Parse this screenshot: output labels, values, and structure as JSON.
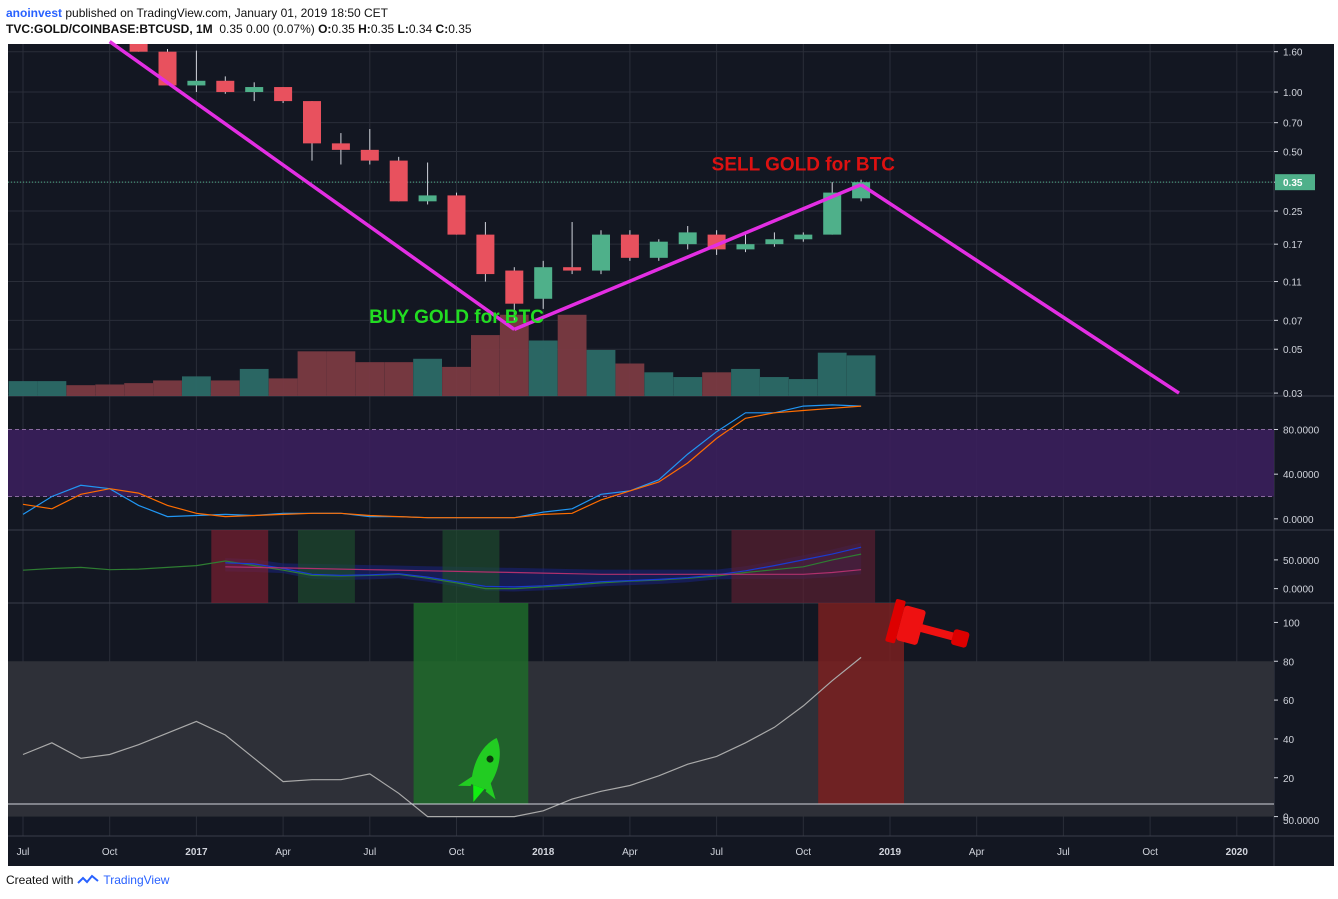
{
  "header": {
    "author": "anoinvest",
    "published": "published on TradingView.com, January 01, 2019 18:50 CET",
    "symbol": "TVC:GOLD/COINBASE:BTCUSD, 1M",
    "quote": "0.35 0.00 (0.07%)",
    "ohlc": {
      "o": "0.35",
      "h": "0.35",
      "l": "0.34",
      "c": "0.35"
    }
  },
  "footer": {
    "created_with": "Created with",
    "brand": "TradingView"
  },
  "colors": {
    "up": "#4fb08a",
    "down": "#e8515e",
    "trend": "#e32ee3",
    "bg": "#131722",
    "grid": "#2a2e39",
    "buy": "#22dd22",
    "sell": "#dd1111"
  },
  "chart_data": [
    {
      "type": "candlestick",
      "scale": "log",
      "ylim": [
        0.029,
        1.75
      ],
      "y_ticks": [
        1.6,
        1.0,
        0.7,
        0.5,
        0.35,
        0.25,
        0.17,
        0.11,
        0.07,
        0.05,
        0.03
      ],
      "y_tick_labels": [
        "1.60",
        "1.00",
        "0.70",
        "0.50",
        "0.35",
        "0.25",
        "0.17",
        "0.11",
        "0.07",
        "0.05",
        "0.03"
      ],
      "last_price_label": "0.35",
      "x_ticks": [
        {
          "date": "2016-07",
          "label": "Jul"
        },
        {
          "date": "2016-10",
          "label": "Oct"
        },
        {
          "date": "2017-01",
          "label": "2017"
        },
        {
          "date": "2017-04",
          "label": "Apr"
        },
        {
          "date": "2017-07",
          "label": "Jul"
        },
        {
          "date": "2017-10",
          "label": "Oct"
        },
        {
          "date": "2018-01",
          "label": "2018"
        },
        {
          "date": "2018-04",
          "label": "Apr"
        },
        {
          "date": "2018-07",
          "label": "Jul"
        },
        {
          "date": "2018-10",
          "label": "Oct"
        },
        {
          "date": "2019-01",
          "label": "2019"
        },
        {
          "date": "2019-04",
          "label": "Apr"
        },
        {
          "date": "2019-07",
          "label": "Jul"
        },
        {
          "date": "2019-10",
          "label": "Oct"
        },
        {
          "date": "2020-01",
          "label": "2020"
        }
      ],
      "candles": [
        {
          "date": "2016-11",
          "o": 1.75,
          "h": 1.75,
          "l": 1.6,
          "c": 1.6
        },
        {
          "date": "2016-12",
          "o": 1.6,
          "h": 1.65,
          "l": 1.08,
          "c": 1.08
        },
        {
          "date": "2017-01",
          "o": 1.08,
          "h": 1.62,
          "l": 1.0,
          "c": 1.14
        },
        {
          "date": "2017-02",
          "o": 1.14,
          "h": 1.2,
          "l": 0.98,
          "c": 1.0
        },
        {
          "date": "2017-03",
          "o": 1.0,
          "h": 1.12,
          "l": 0.9,
          "c": 1.06
        },
        {
          "date": "2017-04",
          "o": 1.06,
          "h": 1.06,
          "l": 0.88,
          "c": 0.9
        },
        {
          "date": "2017-05",
          "o": 0.9,
          "h": 0.9,
          "l": 0.45,
          "c": 0.55
        },
        {
          "date": "2017-06",
          "o": 0.55,
          "h": 0.62,
          "l": 0.43,
          "c": 0.51
        },
        {
          "date": "2017-07",
          "o": 0.51,
          "h": 0.65,
          "l": 0.43,
          "c": 0.45
        },
        {
          "date": "2017-08",
          "o": 0.45,
          "h": 0.47,
          "l": 0.28,
          "c": 0.28
        },
        {
          "date": "2017-09",
          "o": 0.28,
          "h": 0.44,
          "l": 0.27,
          "c": 0.3
        },
        {
          "date": "2017-10",
          "o": 0.3,
          "h": 0.31,
          "l": 0.19,
          "c": 0.19
        },
        {
          "date": "2017-11",
          "o": 0.19,
          "h": 0.22,
          "l": 0.11,
          "c": 0.12
        },
        {
          "date": "2017-12",
          "o": 0.125,
          "h": 0.13,
          "l": 0.07,
          "c": 0.085
        },
        {
          "date": "2018-01",
          "o": 0.09,
          "h": 0.14,
          "l": 0.08,
          "c": 0.13
        },
        {
          "date": "2018-02",
          "o": 0.13,
          "h": 0.22,
          "l": 0.12,
          "c": 0.125
        },
        {
          "date": "2018-03",
          "o": 0.125,
          "h": 0.2,
          "l": 0.12,
          "c": 0.19
        },
        {
          "date": "2018-04",
          "o": 0.19,
          "h": 0.2,
          "l": 0.14,
          "c": 0.145
        },
        {
          "date": "2018-05",
          "o": 0.145,
          "h": 0.18,
          "l": 0.14,
          "c": 0.175
        },
        {
          "date": "2018-06",
          "o": 0.17,
          "h": 0.21,
          "l": 0.16,
          "c": 0.195
        },
        {
          "date": "2018-07",
          "o": 0.19,
          "h": 0.2,
          "l": 0.15,
          "c": 0.16
        },
        {
          "date": "2018-08",
          "o": 0.16,
          "h": 0.195,
          "l": 0.155,
          "c": 0.17
        },
        {
          "date": "2018-09",
          "o": 0.17,
          "h": 0.195,
          "l": 0.165,
          "c": 0.18
        },
        {
          "date": "2018-10",
          "o": 0.18,
          "h": 0.195,
          "l": 0.175,
          "c": 0.19
        },
        {
          "date": "2018-11",
          "o": 0.19,
          "h": 0.35,
          "l": 0.19,
          "c": 0.31
        },
        {
          "date": "2018-12",
          "o": 0.29,
          "h": 0.36,
          "l": 0.28,
          "c": 0.35
        }
      ],
      "volume": [
        {
          "date": "2016-07",
          "v": 22,
          "dir": "up"
        },
        {
          "date": "2016-08",
          "v": 22,
          "dir": "up"
        },
        {
          "date": "2016-09",
          "v": 16,
          "dir": "down"
        },
        {
          "date": "2016-10",
          "v": 17,
          "dir": "down"
        },
        {
          "date": "2016-11",
          "v": 19,
          "dir": "down"
        },
        {
          "date": "2016-12",
          "v": 23,
          "dir": "down"
        },
        {
          "date": "2017-01",
          "v": 29,
          "dir": "up"
        },
        {
          "date": "2017-02",
          "v": 23,
          "dir": "down"
        },
        {
          "date": "2017-03",
          "v": 40,
          "dir": "up"
        },
        {
          "date": "2017-04",
          "v": 26,
          "dir": "down"
        },
        {
          "date": "2017-05",
          "v": 66,
          "dir": "down"
        },
        {
          "date": "2017-06",
          "v": 66,
          "dir": "down"
        },
        {
          "date": "2017-07",
          "v": 50,
          "dir": "down"
        },
        {
          "date": "2017-08",
          "v": 50,
          "dir": "down"
        },
        {
          "date": "2017-09",
          "v": 55,
          "dir": "up"
        },
        {
          "date": "2017-10",
          "v": 43,
          "dir": "down"
        },
        {
          "date": "2017-11",
          "v": 90,
          "dir": "down"
        },
        {
          "date": "2017-12",
          "v": 120,
          "dir": "down"
        },
        {
          "date": "2018-01",
          "v": 82,
          "dir": "up"
        },
        {
          "date": "2018-02",
          "v": 120,
          "dir": "down"
        },
        {
          "date": "2018-03",
          "v": 68,
          "dir": "up"
        },
        {
          "date": "2018-04",
          "v": 48,
          "dir": "down"
        },
        {
          "date": "2018-05",
          "v": 35,
          "dir": "up"
        },
        {
          "date": "2018-06",
          "v": 28,
          "dir": "up"
        },
        {
          "date": "2018-07",
          "v": 35,
          "dir": "down"
        },
        {
          "date": "2018-08",
          "v": 40,
          "dir": "up"
        },
        {
          "date": "2018-09",
          "v": 28,
          "dir": "up"
        },
        {
          "date": "2018-10",
          "v": 25,
          "dir": "up"
        },
        {
          "date": "2018-11",
          "v": 64,
          "dir": "up"
        },
        {
          "date": "2018-12",
          "v": 60,
          "dir": "up"
        }
      ],
      "trendlines": [
        {
          "points": [
            {
              "date": "2016-10",
              "y": 1.8
            },
            {
              "date": "2017-12",
              "y": 0.063
            }
          ]
        },
        {
          "points": [
            {
              "date": "2017-12",
              "y": 0.063
            },
            {
              "date": "2018-12",
              "y": 0.34
            }
          ]
        },
        {
          "points": [
            {
              "date": "2018-12",
              "y": 0.34
            },
            {
              "date": "2019-11",
              "y": 0.03
            }
          ]
        }
      ],
      "annotations": [
        {
          "text": "SELL GOLD for BTC",
          "date": "2018-10",
          "y": 0.4,
          "color": "#dd1111"
        },
        {
          "text": "BUY GOLD for BTC",
          "date": "2017-10",
          "y": 0.068,
          "color": "#22dd22"
        }
      ]
    },
    {
      "type": "line",
      "name": "Stochastic",
      "ylim": [
        -10,
        110
      ],
      "y_ticks": [
        0,
        40,
        80
      ],
      "y_tick_labels": [
        "0.0000",
        "40.0000",
        "80.0000"
      ],
      "band": [
        20,
        80
      ],
      "x": [
        "2016-07",
        "2016-08",
        "2016-09",
        "2016-10",
        "2016-11",
        "2016-12",
        "2017-01",
        "2017-02",
        "2017-03",
        "2017-04",
        "2017-05",
        "2017-06",
        "2017-07",
        "2017-08",
        "2017-09",
        "2017-10",
        "2017-11",
        "2017-12",
        "2018-01",
        "2018-02",
        "2018-03",
        "2018-04",
        "2018-05",
        "2018-06",
        "2018-07",
        "2018-08",
        "2018-09",
        "2018-10",
        "2018-11",
        "2018-12"
      ],
      "series": [
        {
          "color": "#2196f3",
          "values": [
            4,
            20,
            30,
            27,
            12,
            2,
            3,
            4,
            3,
            5,
            5,
            5,
            2,
            2,
            1,
            1,
            1,
            1,
            6,
            9,
            22,
            25,
            35,
            58,
            78,
            95,
            95,
            101,
            102,
            101
          ]
        },
        {
          "color": "#ff6d00",
          "values": [
            13,
            9,
            22,
            27,
            23,
            12,
            5,
            2,
            3,
            4,
            5,
            5,
            3,
            2,
            1,
            1,
            1,
            1,
            4,
            5,
            17,
            25,
            33,
            50,
            72,
            90,
            95,
            97,
            99,
            101
          ]
        }
      ]
    },
    {
      "type": "line",
      "name": "DMI",
      "ylim": [
        -25,
        102
      ],
      "y_ticks": [
        0,
        50
      ],
      "y_tick_labels": [
        "0.0000",
        "50.0000"
      ],
      "x": [
        "2016-07",
        "2016-08",
        "2016-09",
        "2016-10",
        "2016-11",
        "2016-12",
        "2017-01",
        "2017-02",
        "2017-03",
        "2017-04",
        "2017-05",
        "2017-06",
        "2017-07",
        "2017-08",
        "2017-09",
        "2017-10",
        "2017-11",
        "2017-12",
        "2018-01",
        "2018-02",
        "2018-03",
        "2018-04",
        "2018-05",
        "2018-06",
        "2018-07",
        "2018-08",
        "2018-09",
        "2018-10",
        "2018-11",
        "2018-12"
      ],
      "series": [
        {
          "color": "#2e7d32",
          "values": [
            32,
            35,
            37,
            33,
            34,
            37,
            40,
            48,
            40,
            32,
            23,
            22,
            23,
            25,
            18,
            10,
            0,
            0,
            3,
            6,
            10,
            13,
            15,
            18,
            22,
            28,
            33,
            38,
            50,
            60
          ]
        },
        {
          "color": "#1a3ad1",
          "values": [
            null,
            null,
            null,
            null,
            null,
            null,
            null,
            45,
            43,
            35,
            25,
            23,
            24,
            26,
            20,
            12,
            4,
            3,
            5,
            8,
            12,
            14,
            16,
            19,
            24,
            31,
            40,
            50,
            60,
            72
          ]
        },
        {
          "color": "#b0306c",
          "values": [
            null,
            null,
            null,
            null,
            null,
            null,
            null,
            38,
            37,
            36,
            35,
            34,
            33,
            32,
            31,
            30,
            29,
            28,
            27,
            26,
            25,
            25,
            25,
            25,
            25,
            25,
            25,
            25,
            28,
            33
          ]
        }
      ],
      "highlights": [
        {
          "from": "2017-02",
          "to": "2017-03",
          "color": "#7a2030"
        },
        {
          "from": "2017-05",
          "to": "2017-06",
          "color": "#1e4a2e"
        },
        {
          "from": "2017-10",
          "to": "2017-11",
          "color": "#1e4a2e"
        },
        {
          "from": "2018-08",
          "to": "2018-12",
          "color": "#5a2030"
        }
      ]
    },
    {
      "type": "line",
      "name": "Oscillator",
      "ylim": [
        -10,
        110
      ],
      "y_ticks": [
        0,
        20,
        40,
        60,
        80,
        100
      ],
      "y_tick_labels": [
        "0",
        "20",
        "40",
        "60",
        "80",
        "100"
      ],
      "below_label": "50.0000",
      "band": [
        0,
        80
      ],
      "x": [
        "2016-07",
        "2016-08",
        "2016-09",
        "2016-10",
        "2016-11",
        "2016-12",
        "2017-01",
        "2017-02",
        "2017-03",
        "2017-04",
        "2017-05",
        "2017-06",
        "2017-07",
        "2017-08",
        "2017-09",
        "2017-10",
        "2017-11",
        "2017-12",
        "2018-01",
        "2018-02",
        "2018-03",
        "2018-04",
        "2018-05",
        "2018-06",
        "2018-07",
        "2018-08",
        "2018-09",
        "2018-10",
        "2018-11",
        "2018-12"
      ],
      "series": [
        {
          "color": "#aaaaaa",
          "values": [
            32,
            38,
            30,
            32,
            37,
            43,
            49,
            42,
            30,
            18,
            19,
            19,
            22,
            12,
            0,
            0,
            0,
            0,
            3,
            9,
            13,
            16,
            21,
            27,
            31,
            38,
            46,
            57,
            70,
            82
          ]
        }
      ],
      "zones": [
        {
          "from": "2017-09",
          "to": "2017-12",
          "color": "#1f6a2a"
        },
        {
          "from": "2018-11",
          "to": "2019-01",
          "color": "#7a2020"
        }
      ]
    }
  ]
}
